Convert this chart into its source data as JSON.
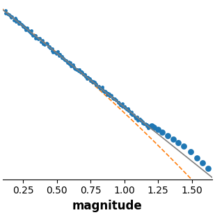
{
  "title": "",
  "xlabel": "magnitude",
  "ylabel": "",
  "xlim": [
    0.1,
    1.65
  ],
  "xticks": [
    0.25,
    0.5,
    0.75,
    1.0,
    1.25,
    1.5
  ],
  "scatter_color": "#1f77b4",
  "line1_color": "#7f7f7f",
  "line2_color": "#ff7f0e",
  "line2_style": "--",
  "marker_size": 3.5,
  "figsize": [
    3.09,
    3.09
  ],
  "dpi": 100,
  "ylim": [
    -0.15,
    4.5
  ],
  "xlabel_fontsize": 12,
  "xlabel_fontweight": "bold"
}
